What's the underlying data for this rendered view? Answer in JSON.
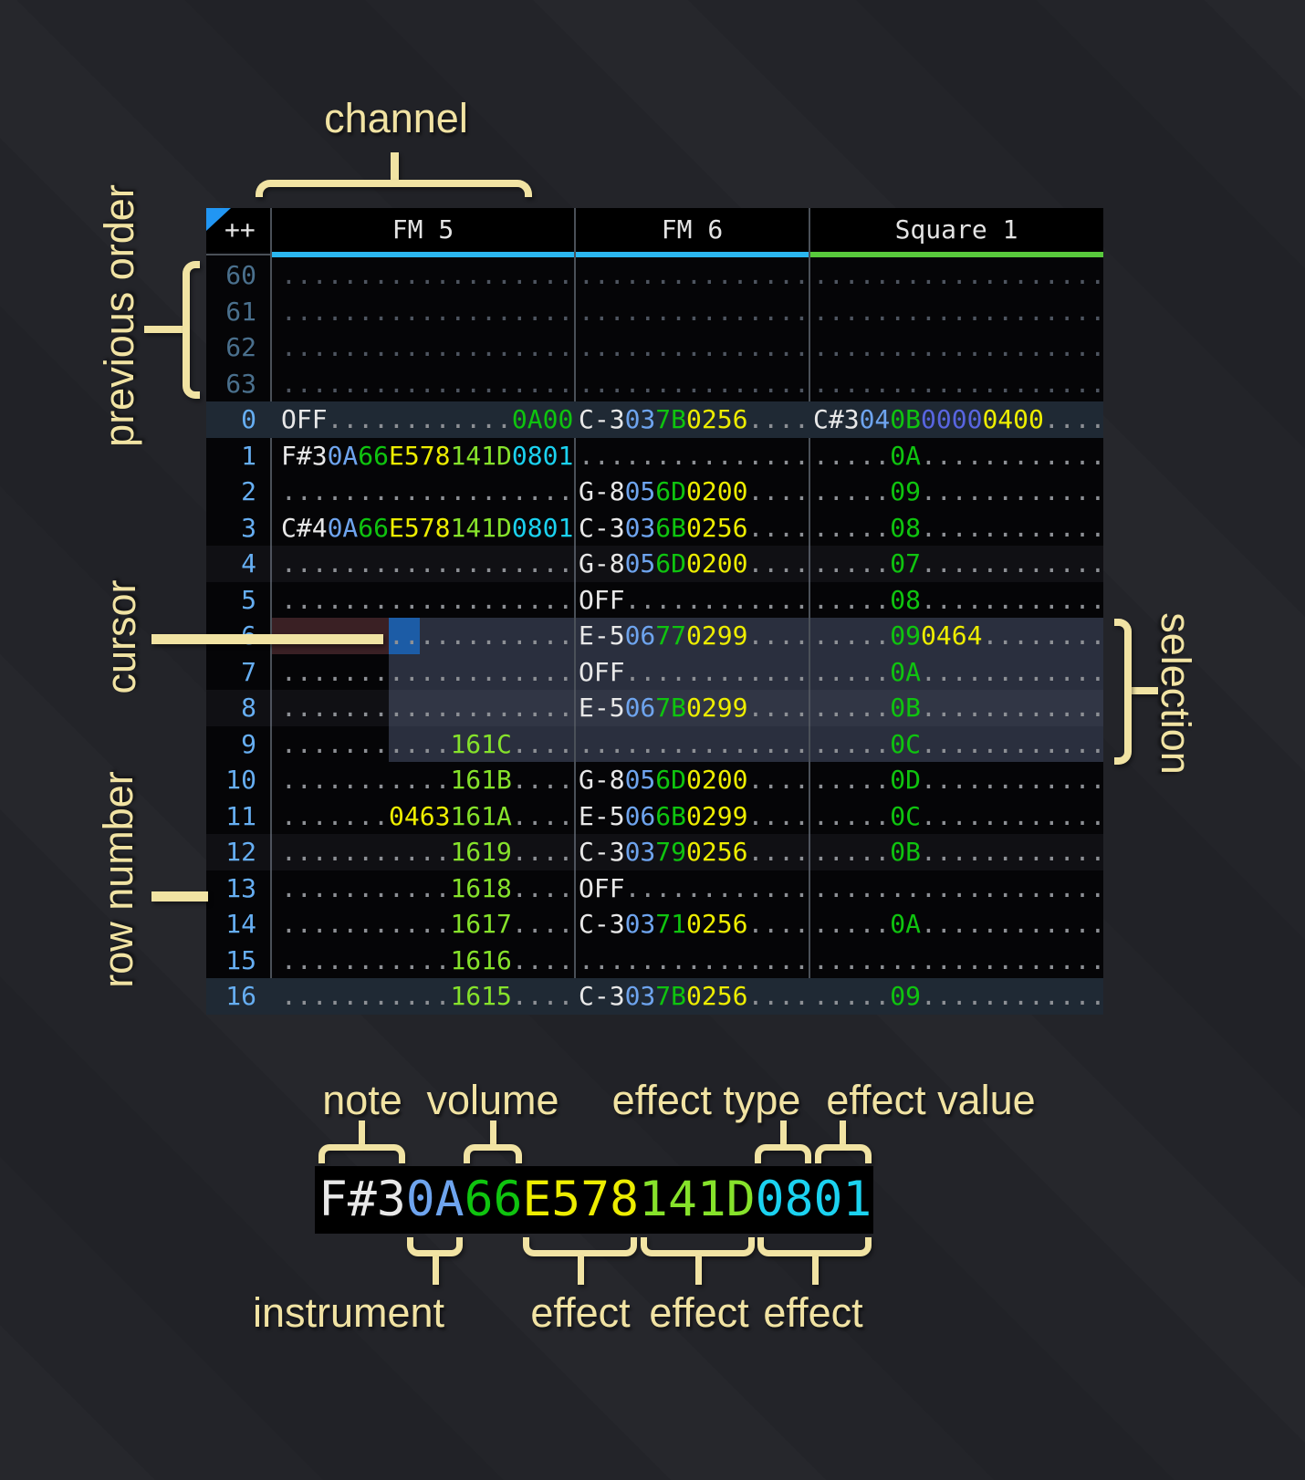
{
  "annotations": {
    "channel": "channel",
    "previous_order": "previous order",
    "cursor": "cursor",
    "row_number": "row number",
    "selection": "selection"
  },
  "header": {
    "corner": "++",
    "channels": [
      {
        "name": "FM 5",
        "color": "#2BB7F0"
      },
      {
        "name": "FM 6",
        "color": "#2BB7F0"
      },
      {
        "name": "Square 1",
        "color": "#58C93C"
      }
    ]
  },
  "colors": {
    "note": "#E8E8E8",
    "instrument": "#6EA4EE",
    "volume": "#0FC40F",
    "effect_yellow": "#EDED00",
    "effect_lime": "#86E22B",
    "effect_cyan": "#1BD2F0",
    "effect_indigo": "#5865E0",
    "dots": "#8D9095",
    "cursor": "#1C5CA6",
    "cursor_row": "#3A2024",
    "selection": "#2A2F3E",
    "row_highlight": "#1F2934"
  },
  "rows": [
    {
      "num": "60",
      "dim": true,
      "hl": "",
      "fm5": [
        [
          "...................",
          "dot"
        ]
      ],
      "fm6": [
        [
          "...............",
          "dot"
        ]
      ],
      "sq1": [
        [
          "...................",
          "dot"
        ]
      ]
    },
    {
      "num": "61",
      "dim": true,
      "hl": "",
      "fm5": [
        [
          "...................",
          "dot"
        ]
      ],
      "fm6": [
        [
          "...............",
          "dot"
        ]
      ],
      "sq1": [
        [
          "...................",
          "dot"
        ]
      ]
    },
    {
      "num": "62",
      "dim": true,
      "hl": "",
      "fm5": [
        [
          "...................",
          "dot"
        ]
      ],
      "fm6": [
        [
          "...............",
          "dot"
        ]
      ],
      "sq1": [
        [
          "...................",
          "dot"
        ]
      ]
    },
    {
      "num": "63",
      "dim": true,
      "hl": "",
      "fm5": [
        [
          "...................",
          "dot"
        ]
      ],
      "fm6": [
        [
          "...............",
          "dot"
        ]
      ],
      "sq1": [
        [
          "...................",
          "dot"
        ]
      ]
    },
    {
      "num": "0",
      "dim": false,
      "hl": "h2",
      "fm5": [
        [
          "OFF",
          "note"
        ],
        [
          "............",
          "dot"
        ],
        [
          "0A00",
          "vol"
        ]
      ],
      "fm6": [
        [
          "C-3",
          "note"
        ],
        [
          "03",
          "ins"
        ],
        [
          "7B",
          "vol"
        ],
        [
          "0256",
          "fxY"
        ],
        [
          "....",
          "dot"
        ]
      ],
      "sq1": [
        [
          "C#3",
          "note"
        ],
        [
          "04",
          "ins"
        ],
        [
          "0B",
          "vol"
        ],
        [
          "0000",
          "fxI"
        ],
        [
          "0400",
          "fxY"
        ],
        [
          "....",
          "dot"
        ]
      ]
    },
    {
      "num": "1",
      "dim": false,
      "hl": "",
      "fm5": [
        [
          "F#3",
          "note"
        ],
        [
          "0A",
          "ins"
        ],
        [
          "66",
          "vol"
        ],
        [
          "E578",
          "fxY"
        ],
        [
          "141D",
          "fxG"
        ],
        [
          "0801",
          "fxC"
        ]
      ],
      "fm6": [
        [
          "...............",
          "dot"
        ]
      ],
      "sq1": [
        [
          ".....",
          "dot"
        ],
        [
          "0A",
          "vol"
        ],
        [
          "............",
          "dot"
        ]
      ]
    },
    {
      "num": "2",
      "dim": false,
      "hl": "",
      "fm5": [
        [
          "...................",
          "dot"
        ]
      ],
      "fm6": [
        [
          "G-8",
          "note"
        ],
        [
          "05",
          "ins"
        ],
        [
          "6D",
          "vol"
        ],
        [
          "0200",
          "fxY"
        ],
        [
          "....",
          "dot"
        ]
      ],
      "sq1": [
        [
          ".....",
          "dot"
        ],
        [
          "09",
          "vol"
        ],
        [
          "............",
          "dot"
        ]
      ]
    },
    {
      "num": "3",
      "dim": false,
      "hl": "",
      "fm5": [
        [
          "C#4",
          "note"
        ],
        [
          "0A",
          "ins"
        ],
        [
          "66",
          "vol"
        ],
        [
          "E578",
          "fxY"
        ],
        [
          "141D",
          "fxG"
        ],
        [
          "0801",
          "fxC"
        ]
      ],
      "fm6": [
        [
          "C-3",
          "note"
        ],
        [
          "03",
          "ins"
        ],
        [
          "6B",
          "vol"
        ],
        [
          "0256",
          "fxY"
        ],
        [
          "....",
          "dot"
        ]
      ],
      "sq1": [
        [
          ".....",
          "dot"
        ],
        [
          "08",
          "vol"
        ],
        [
          "............",
          "dot"
        ]
      ]
    },
    {
      "num": "4",
      "dim": false,
      "hl": "h1",
      "fm5": [
        [
          "...................",
          "dot"
        ]
      ],
      "fm6": [
        [
          "G-8",
          "note"
        ],
        [
          "05",
          "ins"
        ],
        [
          "6D",
          "vol"
        ],
        [
          "0200",
          "fxY"
        ],
        [
          "....",
          "dot"
        ]
      ],
      "sq1": [
        [
          ".....",
          "dot"
        ],
        [
          "07",
          "vol"
        ],
        [
          "............",
          "dot"
        ]
      ]
    },
    {
      "num": "5",
      "dim": false,
      "hl": "",
      "fm5": [
        [
          "...................",
          "dot"
        ]
      ],
      "fm6": [
        [
          "OFF",
          "note"
        ],
        [
          "............",
          "dot"
        ]
      ],
      "sq1": [
        [
          ".....",
          "dot"
        ],
        [
          "08",
          "vol"
        ],
        [
          "............",
          "dot"
        ]
      ]
    },
    {
      "num": "6",
      "dim": false,
      "hl": "",
      "fm5": [
        [
          "...................",
          "dot"
        ]
      ],
      "fm6": [
        [
          "E-5",
          "note"
        ],
        [
          "06",
          "ins"
        ],
        [
          "77",
          "vol"
        ],
        [
          "0299",
          "fxY"
        ],
        [
          "....",
          "dot"
        ]
      ],
      "sq1": [
        [
          ".....",
          "dot"
        ],
        [
          "09",
          "vol"
        ],
        [
          "0464",
          "fxY"
        ],
        [
          "........",
          "dot"
        ]
      ]
    },
    {
      "num": "7",
      "dim": false,
      "hl": "",
      "fm5": [
        [
          "...................",
          "dot"
        ]
      ],
      "fm6": [
        [
          "OFF",
          "note"
        ],
        [
          "............",
          "dot"
        ]
      ],
      "sq1": [
        [
          ".....",
          "dot"
        ],
        [
          "0A",
          "vol"
        ],
        [
          "............",
          "dot"
        ]
      ]
    },
    {
      "num": "8",
      "dim": false,
      "hl": "h1",
      "fm5": [
        [
          "...................",
          "dot"
        ]
      ],
      "fm6": [
        [
          "E-5",
          "note"
        ],
        [
          "06",
          "ins"
        ],
        [
          "7B",
          "vol"
        ],
        [
          "0299",
          "fxY"
        ],
        [
          "....",
          "dot"
        ]
      ],
      "sq1": [
        [
          ".....",
          "dot"
        ],
        [
          "0B",
          "vol"
        ],
        [
          "............",
          "dot"
        ]
      ]
    },
    {
      "num": "9",
      "dim": false,
      "hl": "",
      "fm5": [
        [
          "...........",
          "dot"
        ],
        [
          "161C",
          "fxG"
        ],
        [
          "....",
          "dot"
        ]
      ],
      "fm6": [
        [
          "...............",
          "dot"
        ]
      ],
      "sq1": [
        [
          ".....",
          "dot"
        ],
        [
          "0C",
          "vol"
        ],
        [
          "............",
          "dot"
        ]
      ]
    },
    {
      "num": "10",
      "dim": false,
      "hl": "",
      "fm5": [
        [
          "...........",
          "dot"
        ],
        [
          "161B",
          "fxG"
        ],
        [
          "....",
          "dot"
        ]
      ],
      "fm6": [
        [
          "G-8",
          "note"
        ],
        [
          "05",
          "ins"
        ],
        [
          "6D",
          "vol"
        ],
        [
          "0200",
          "fxY"
        ],
        [
          "....",
          "dot"
        ]
      ],
      "sq1": [
        [
          ".....",
          "dot"
        ],
        [
          "0D",
          "vol"
        ],
        [
          "............",
          "dot"
        ]
      ]
    },
    {
      "num": "11",
      "dim": false,
      "hl": "",
      "fm5": [
        [
          ".......",
          "dot"
        ],
        [
          "0463",
          "fxY"
        ],
        [
          "161A",
          "fxG"
        ],
        [
          "....",
          "dot"
        ]
      ],
      "fm6": [
        [
          "E-5",
          "note"
        ],
        [
          "06",
          "ins"
        ],
        [
          "6B",
          "vol"
        ],
        [
          "0299",
          "fxY"
        ],
        [
          "....",
          "dot"
        ]
      ],
      "sq1": [
        [
          ".....",
          "dot"
        ],
        [
          "0C",
          "vol"
        ],
        [
          "............",
          "dot"
        ]
      ]
    },
    {
      "num": "12",
      "dim": false,
      "hl": "h1",
      "fm5": [
        [
          "...........",
          "dot"
        ],
        [
          "1619",
          "fxG"
        ],
        [
          "....",
          "dot"
        ]
      ],
      "fm6": [
        [
          "C-3",
          "note"
        ],
        [
          "03",
          "ins"
        ],
        [
          "79",
          "vol"
        ],
        [
          "0256",
          "fxY"
        ],
        [
          "....",
          "dot"
        ]
      ],
      "sq1": [
        [
          ".....",
          "dot"
        ],
        [
          "0B",
          "vol"
        ],
        [
          "............",
          "dot"
        ]
      ]
    },
    {
      "num": "13",
      "dim": false,
      "hl": "",
      "fm5": [
        [
          "...........",
          "dot"
        ],
        [
          "1618",
          "fxG"
        ],
        [
          "....",
          "dot"
        ]
      ],
      "fm6": [
        [
          "OFF",
          "note"
        ],
        [
          "............",
          "dot"
        ]
      ],
      "sq1": [
        [
          "...................",
          "dot"
        ]
      ]
    },
    {
      "num": "14",
      "dim": false,
      "hl": "",
      "fm5": [
        [
          "...........",
          "dot"
        ],
        [
          "1617",
          "fxG"
        ],
        [
          "....",
          "dot"
        ]
      ],
      "fm6": [
        [
          "C-3",
          "note"
        ],
        [
          "03",
          "ins"
        ],
        [
          "71",
          "vol"
        ],
        [
          "0256",
          "fxY"
        ],
        [
          "....",
          "dot"
        ]
      ],
      "sq1": [
        [
          ".....",
          "dot"
        ],
        [
          "0A",
          "vol"
        ],
        [
          "............",
          "dot"
        ]
      ]
    },
    {
      "num": "15",
      "dim": false,
      "hl": "",
      "fm5": [
        [
          "...........",
          "dot"
        ],
        [
          "1616",
          "fxG"
        ],
        [
          "....",
          "dot"
        ]
      ],
      "fm6": [
        [
          "...............",
          "dot"
        ]
      ],
      "sq1": [
        [
          "...................",
          "dot"
        ]
      ]
    },
    {
      "num": "16",
      "dim": false,
      "hl": "h2",
      "fm5": [
        [
          "...........",
          "dot"
        ],
        [
          "1615",
          "fxG"
        ],
        [
          "....",
          "dot"
        ]
      ],
      "fm6": [
        [
          "C-3",
          "note"
        ],
        [
          "03",
          "ins"
        ],
        [
          "7B",
          "vol"
        ],
        [
          "0256",
          "fxY"
        ],
        [
          "....",
          "dot"
        ]
      ],
      "sq1": [
        [
          ".....",
          "dot"
        ],
        [
          "09",
          "vol"
        ],
        [
          "............",
          "dot"
        ]
      ]
    }
  ],
  "legend": {
    "cell": [
      [
        "F#3",
        "note"
      ],
      [
        "0A",
        "ins"
      ],
      [
        "66",
        "vol"
      ],
      [
        "E578",
        "fxY"
      ],
      [
        "141D",
        "fxG"
      ],
      [
        "0801",
        "fxC"
      ]
    ],
    "top_labels": [
      "note",
      "volume",
      "effect type",
      "effect value"
    ],
    "bottom_labels": [
      "instrument",
      "effect",
      "effect",
      "effect"
    ]
  }
}
